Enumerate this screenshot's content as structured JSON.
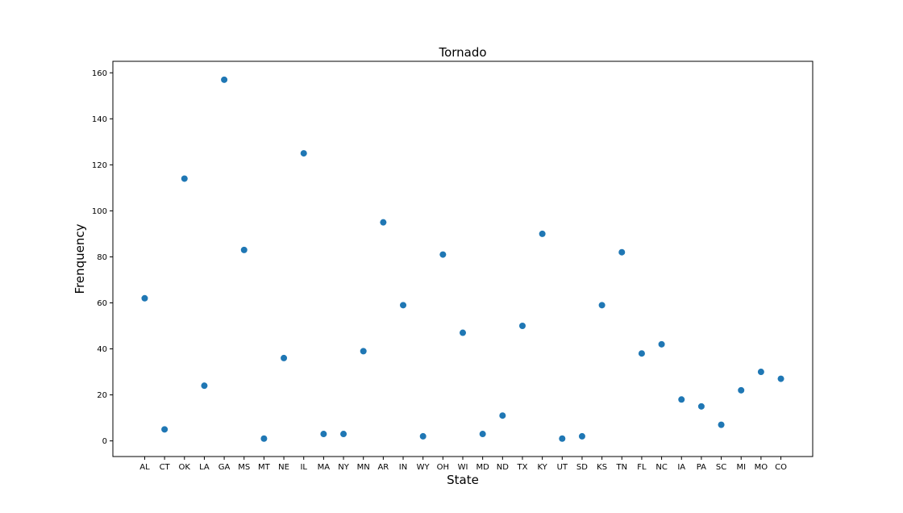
{
  "chart_data": {
    "type": "scatter",
    "title": "Tornado",
    "xlabel": "State",
    "ylabel": "Frenquency",
    "categories": [
      "AL",
      "CT",
      "OK",
      "LA",
      "GA",
      "MS",
      "MT",
      "NE",
      "IL",
      "MA",
      "NY",
      "MN",
      "AR",
      "IN",
      "WY",
      "OH",
      "WI",
      "MD",
      "ND",
      "TX",
      "KY",
      "UT",
      "SD",
      "KS",
      "TN",
      "FL",
      "NC",
      "IA",
      "PA",
      "SC",
      "MI",
      "MO",
      "CO"
    ],
    "values": [
      62,
      5,
      114,
      24,
      157,
      83,
      1,
      36,
      125,
      3,
      3,
      39,
      95,
      59,
      2,
      81,
      47,
      3,
      11,
      50,
      90,
      1,
      2,
      59,
      82,
      38,
      42,
      18,
      15,
      7,
      22,
      30,
      27
    ],
    "ylim": [
      -6.8,
      165
    ],
    "yticks": [
      0,
      20,
      40,
      60,
      80,
      100,
      120,
      140,
      160
    ],
    "grid": false,
    "marker_color": "#1f77b4"
  }
}
